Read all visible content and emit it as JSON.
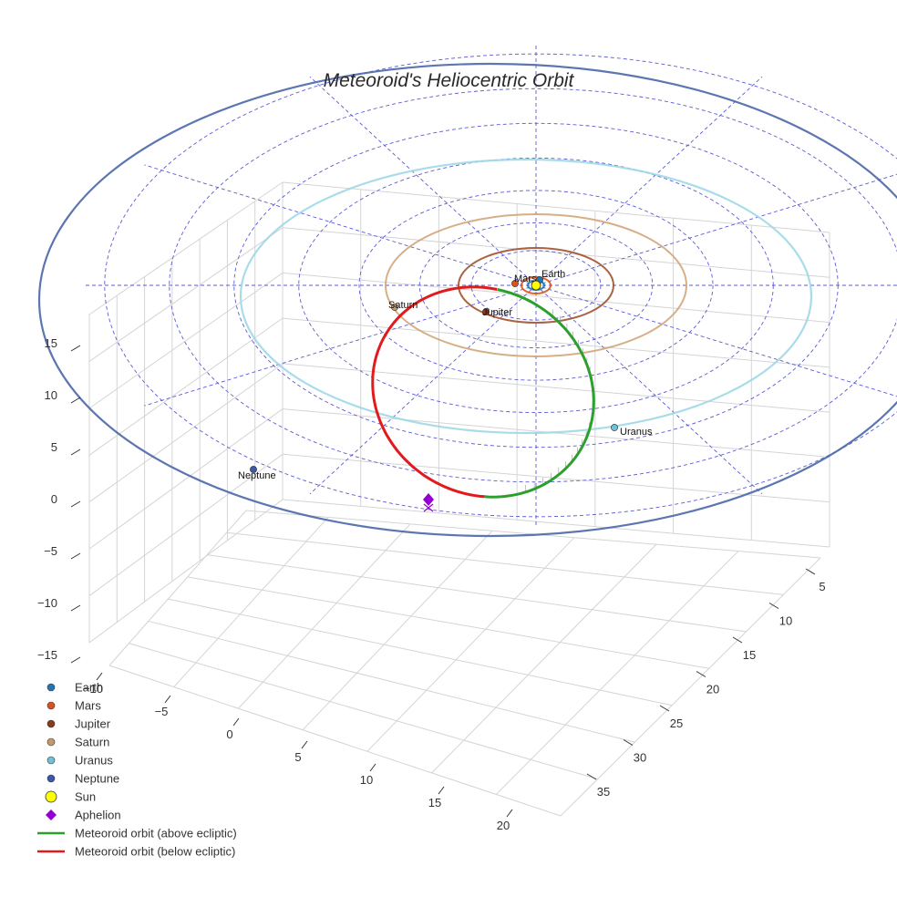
{
  "chart_data": {
    "type": "scatter",
    "title": "Meteoroid's Heliocentric Orbit",
    "projection": "3d",
    "axes": {
      "x": {
        "ticks": [
          -10,
          -5,
          0,
          5,
          10,
          15,
          20
        ],
        "range": [
          -12,
          22
        ]
      },
      "y": {
        "ticks": [
          5,
          10,
          15,
          20,
          25,
          30,
          35
        ],
        "range": [
          3,
          37
        ]
      },
      "z": {
        "ticks": [
          -15,
          -10,
          -5,
          0,
          5,
          10,
          15
        ],
        "range": [
          -16,
          17
        ]
      },
      "grid": true
    },
    "ecliptic_grid": {
      "rings": 7,
      "spokes": 12
    },
    "planet_orbits": [
      {
        "name": "Earth",
        "color": "#1f77b4"
      },
      {
        "name": "Mars",
        "color": "#d9531e"
      },
      {
        "name": "Jupiter",
        "color": "#a0522d"
      },
      {
        "name": "Saturn",
        "color": "#d2a679"
      },
      {
        "name": "Uranus",
        "color": "#9fd8e6"
      },
      {
        "name": "Neptune",
        "color": "#4a67a8"
      }
    ],
    "planets": [
      {
        "name": "Earth",
        "label": "Earth",
        "color": "#1f77b4"
      },
      {
        "name": "Mars",
        "label": "Mars",
        "color": "#d9531e"
      },
      {
        "name": "Jupiter",
        "label": "Jupiter",
        "color": "#8b3a1e"
      },
      {
        "name": "Saturn",
        "label": "Saturn",
        "color": "#c49a6c"
      },
      {
        "name": "Uranus",
        "label": "Uranus",
        "color": "#6fc2d6"
      },
      {
        "name": "Neptune",
        "label": "Neptune",
        "color": "#3d58a8"
      }
    ],
    "sun": {
      "label": "Sun",
      "color": "#ffff00"
    },
    "aphelion": {
      "label": "Aphelion",
      "color": "#9400d3"
    },
    "meteoroid": {
      "above_label": "Meteoroid orbit (above ecliptic)",
      "below_label": "Meteoroid orbit (below ecliptic)",
      "above_color": "#2ca02c",
      "below_color": "#e31a1c"
    },
    "legend": {
      "position": "bottom-left",
      "entries": [
        {
          "label": "Earth",
          "marker": "circle",
          "color": "#1f77b4"
        },
        {
          "label": "Mars",
          "marker": "circle",
          "color": "#d9531e"
        },
        {
          "label": "Jupiter",
          "marker": "circle",
          "color": "#8b3a1e"
        },
        {
          "label": "Saturn",
          "marker": "circle",
          "color": "#c49a6c"
        },
        {
          "label": "Uranus",
          "marker": "circle",
          "color": "#6fc2d6"
        },
        {
          "label": "Neptune",
          "marker": "circle",
          "color": "#3d58a8"
        },
        {
          "label": "Sun",
          "marker": "big-circle",
          "color": "#ffff00"
        },
        {
          "label": "Aphelion",
          "marker": "diamond",
          "color": "#9400d3"
        },
        {
          "label": "Meteoroid orbit (above ecliptic)",
          "marker": "line",
          "color": "#2ca02c"
        },
        {
          "label": "Meteoroid orbit (below ecliptic)",
          "marker": "line",
          "color": "#e31a1c"
        }
      ]
    }
  }
}
